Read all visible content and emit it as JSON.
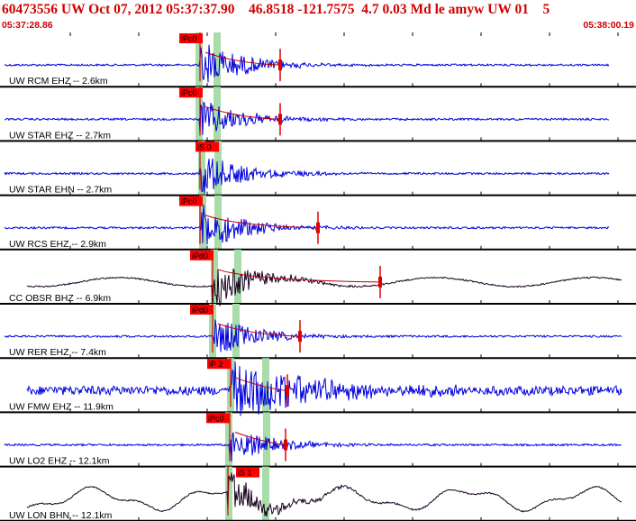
{
  "header": {
    "title": "60473556 UW Oct 07, 2012 05:37:37.90    46.8518 -121.7575  4.7 0.03 Md le amyw UW 01    5",
    "start_time": "05:37:28.86",
    "end_time": "05:38:00.19"
  },
  "colors": {
    "accent": "#d00000",
    "trace_z": "#0000e0",
    "trace_bb": "#180020",
    "pick_box": "#ff0000",
    "pick_window": "#a8dca8"
  },
  "traces": [
    {
      "label": "UW RCM EHZ -- 2.6km",
      "pick": "iPc0",
      "color": "blue",
      "kind": "short"
    },
    {
      "label": "UW STAR EHZ -- 2.7km",
      "pick": "iPc0",
      "color": "blue",
      "kind": "short"
    },
    {
      "label": "UW STAR EHN -- 2.7km",
      "pick": "iS 0",
      "color": "blue",
      "kind": "short"
    },
    {
      "label": "UW RCS EHZ -- 2.9km",
      "pick": "iPc0",
      "color": "blue",
      "kind": "short"
    },
    {
      "label": "CC OBSR BHZ -- 6.9km",
      "pick": "iPd0",
      "color": "dark",
      "kind": "broad"
    },
    {
      "label": "UW RER EHZ -- 7.4km",
      "pick": "iPd0",
      "color": "blue",
      "kind": "short"
    },
    {
      "label": "UW FMW EHZ -- 11.9km",
      "pick": "iP 2",
      "color": "blue",
      "kind": "noisy"
    },
    {
      "label": "UW LO2 EHZ -- 12.1km",
      "pick": "iPc0",
      "color": "blue",
      "kind": "short"
    },
    {
      "label": "UW LON BHN -- 12.1km",
      "pick": "iS 1",
      "color": "dark",
      "kind": "long"
    }
  ]
}
